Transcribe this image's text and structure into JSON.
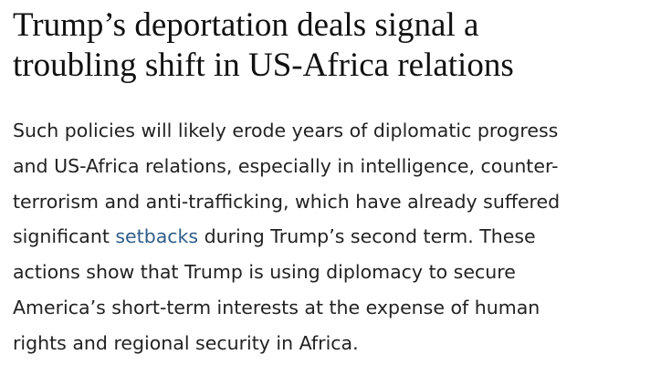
{
  "article": {
    "title_lines": [
      "Trump’s deportation deals signal a",
      "troubling shift in US-Africa relations"
    ],
    "body_lines": [
      "Such policies will likely erode years of diplomatic progress",
      "and US-Africa relations, especially in intelligence, counter-",
      "terrorism and anti-trafficking, which have already suffered",
      {
        "before": "significant ",
        "link": "setbacks",
        "after": " during Trump’s second term. These"
      },
      "actions show that Trump is using diplomacy to secure",
      "America’s short-term interests at the expense of human",
      "rights and regional security in Africa."
    ]
  }
}
